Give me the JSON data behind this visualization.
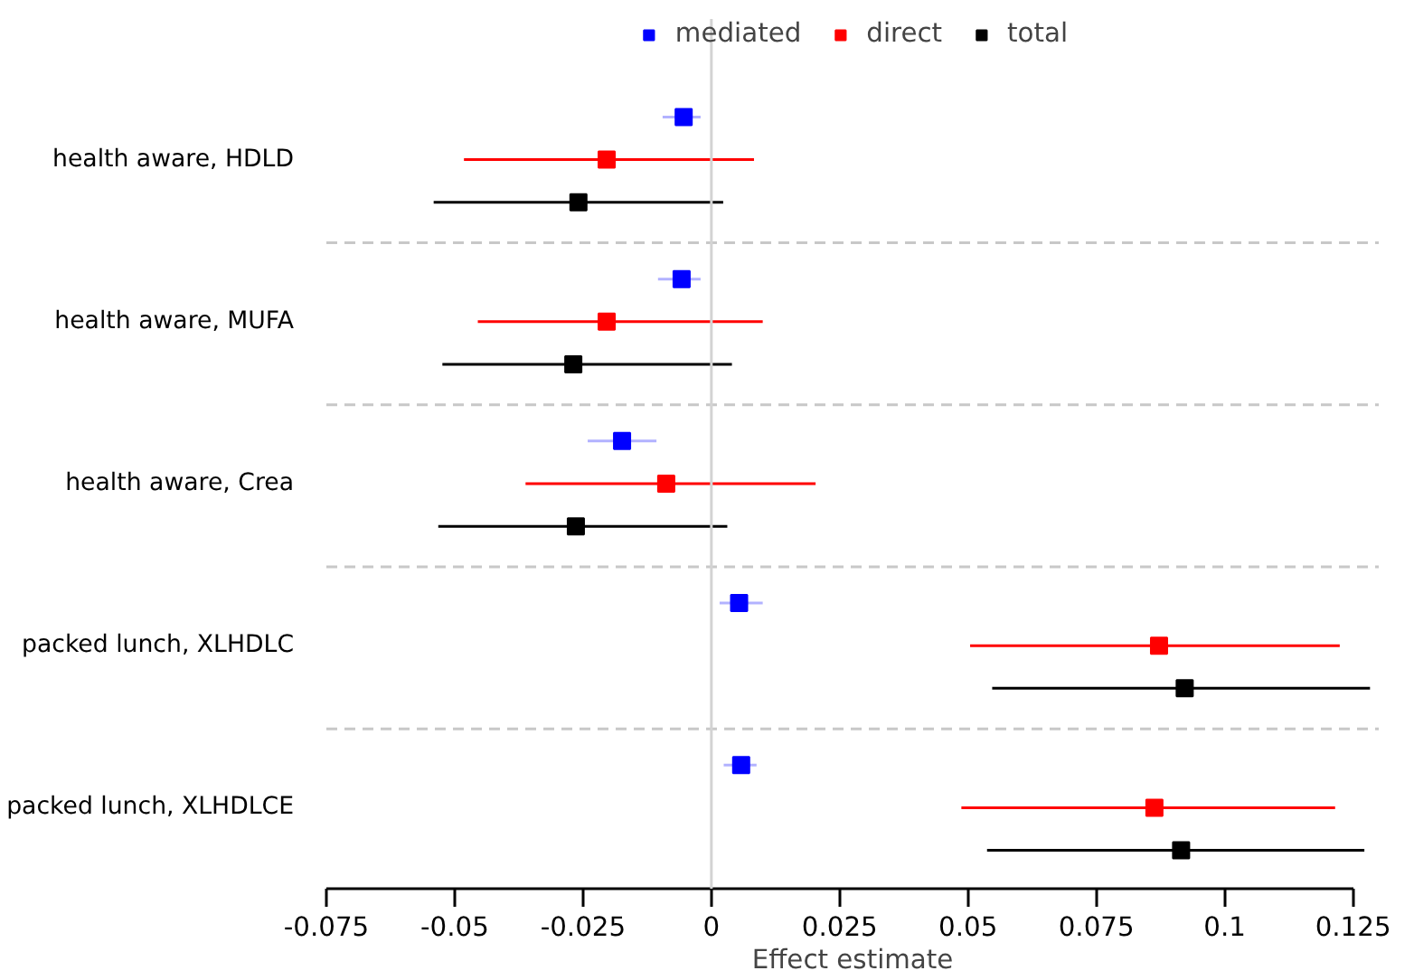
{
  "chart_data": {
    "type": "scatter",
    "orientation": "horizontal",
    "xlabel": "Effect estimate",
    "categories": [
      "health aware, HDLD",
      "health aware, MUFA",
      "health aware, Crea",
      "packed lunch, XLHDLC",
      "packed lunch, XLHDLCE"
    ],
    "series": [
      {
        "name": "mediated",
        "color": "#0000ff",
        "values": [
          -0.0054,
          -0.0058,
          -0.0174,
          0.0054,
          0.0058
        ],
        "errors": [
          [
            -0.0095,
            -0.0021
          ],
          [
            -0.0104,
            -0.0021
          ],
          [
            -0.0241,
            -0.0107
          ],
          [
            0.0016,
            0.01
          ],
          [
            0.0024,
            0.0088
          ]
        ]
      },
      {
        "name": "direct",
        "color": "#ff0000",
        "values": [
          -0.0204,
          -0.0204,
          -0.0088,
          0.0872,
          0.0863
        ],
        "errors": [
          [
            -0.0482,
            0.0083
          ],
          [
            -0.0455,
            0.01
          ],
          [
            -0.0362,
            0.0203
          ],
          [
            0.0504,
            0.1224
          ],
          [
            0.0487,
            0.1215
          ]
        ]
      },
      {
        "name": "total",
        "color": "#000000",
        "values": [
          -0.0259,
          -0.0269,
          -0.0264,
          0.0922,
          0.0915
        ],
        "errors": [
          [
            -0.0541,
            0.0023
          ],
          [
            -0.0524,
            0.004
          ],
          [
            -0.0532,
            0.0031
          ],
          [
            0.0547,
            0.1283
          ],
          [
            0.0537,
            0.1272
          ]
        ]
      }
    ],
    "xlim": [
      -0.075,
      0.13
    ],
    "xticks": [
      -0.075,
      -0.05,
      -0.025,
      0,
      0.025,
      0.05,
      0.075,
      0.1,
      0.125
    ],
    "ref_lines": [
      {
        "axis": "x",
        "value": 0,
        "color": "#d3d3d3"
      }
    ],
    "marker": "square",
    "legend": "top",
    "grid": false
  }
}
